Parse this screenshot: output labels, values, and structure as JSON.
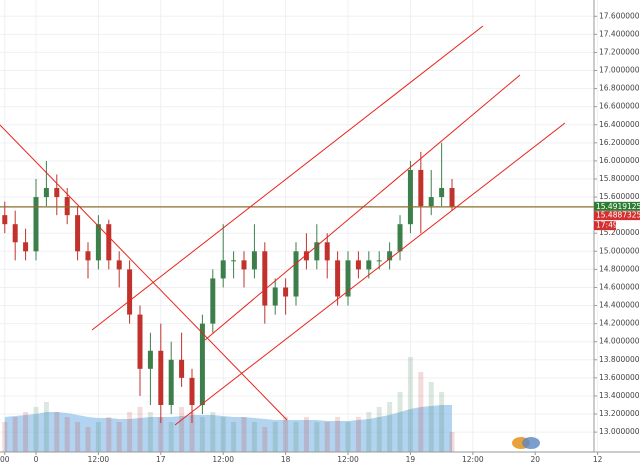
{
  "chart_data": {
    "type": "candlestick",
    "x": [
      -6,
      -4,
      -2,
      0,
      2,
      4,
      6,
      8,
      10,
      12,
      14,
      16,
      18,
      20,
      22,
      24,
      26,
      28,
      30,
      32,
      34,
      36,
      38,
      40,
      42,
      44,
      46,
      48,
      50,
      52,
      54,
      56,
      58,
      60,
      62,
      64,
      66,
      68,
      70,
      72,
      74,
      76,
      78,
      80
    ],
    "open": [
      15.4,
      15.3,
      15.1,
      15.0,
      15.6,
      15.7,
      15.6,
      15.4,
      15.0,
      14.9,
      15.3,
      14.9,
      14.8,
      14.3,
      13.7,
      13.9,
      13.3,
      13.8,
      13.6,
      13.3,
      14.2,
      14.7,
      14.9,
      14.9,
      14.8,
      15.0,
      14.4,
      14.6,
      14.5,
      15.0,
      14.9,
      15.1,
      14.9,
      14.5,
      14.9,
      14.8,
      14.9,
      14.9,
      15.0,
      15.3,
      15.9,
      15.5,
      15.6,
      15.7
    ],
    "high": [
      15.55,
      15.45,
      15.25,
      15.8,
      16.0,
      15.85,
      15.7,
      15.5,
      15.1,
      15.4,
      15.35,
      15.0,
      14.9,
      14.4,
      14.1,
      14.2,
      14.0,
      14.1,
      13.7,
      14.3,
      14.8,
      15.3,
      15.0,
      15.0,
      15.3,
      15.1,
      14.7,
      14.7,
      15.1,
      15.2,
      15.3,
      15.2,
      15.0,
      15.0,
      15.0,
      15.0,
      15.0,
      15.1,
      15.4,
      16.0,
      16.1,
      15.9,
      16.2,
      15.8
    ],
    "low": [
      15.2,
      14.9,
      14.9,
      14.9,
      15.5,
      15.4,
      15.3,
      14.9,
      14.7,
      14.8,
      14.8,
      14.6,
      14.2,
      13.4,
      13.3,
      13.1,
      13.2,
      13.5,
      13.1,
      13.2,
      14.1,
      14.6,
      14.7,
      14.6,
      14.7,
      14.2,
      14.3,
      14.3,
      14.4,
      14.8,
      14.8,
      14.7,
      14.4,
      14.4,
      14.7,
      14.7,
      14.8,
      14.8,
      14.9,
      15.2,
      15.2,
      15.4,
      15.5,
      15.45
    ],
    "close": [
      15.3,
      15.1,
      15.0,
      15.6,
      15.7,
      15.6,
      15.4,
      15.0,
      14.9,
      15.3,
      14.9,
      14.8,
      14.3,
      13.7,
      13.9,
      13.3,
      13.8,
      13.6,
      13.3,
      14.2,
      14.7,
      14.9,
      14.9,
      14.8,
      15.0,
      14.4,
      14.6,
      14.5,
      15.0,
      14.9,
      15.1,
      14.9,
      14.5,
      14.9,
      14.8,
      14.9,
      14.9,
      15.0,
      15.3,
      15.9,
      15.5,
      15.6,
      15.7,
      15.49
    ],
    "volume": [
      30,
      35,
      40,
      45,
      50,
      40,
      35,
      30,
      25,
      30,
      35,
      30,
      40,
      45,
      40,
      35,
      30,
      45,
      40,
      35,
      40,
      35,
      30,
      35,
      30,
      25,
      30,
      35,
      30,
      35,
      30,
      30,
      35,
      30,
      35,
      40,
      45,
      50,
      60,
      95,
      80,
      70,
      60,
      20
    ],
    "volume_ma": [
      35,
      36,
      37,
      38,
      40,
      40,
      39,
      37,
      35,
      34,
      34,
      33,
      33,
      34,
      35,
      35,
      35,
      36,
      37,
      37,
      37,
      36,
      35,
      35,
      34,
      33,
      32,
      32,
      32,
      32,
      32,
      31,
      31,
      31,
      32,
      33,
      35,
      37,
      40,
      43,
      45,
      46,
      47,
      47
    ],
    "vlim": [
      0,
      100
    ],
    "up_color": "#3d7f4b",
    "down_color": "#c2322c",
    "xlim": [
      -6.92,
      107.3
    ],
    "xticks": [
      {
        "value": -6,
        "label": "00"
      },
      0,
      {
        "value": 12,
        "label": "12:00"
      },
      {
        "value": 24,
        "label": "17"
      },
      {
        "value": 36,
        "label": "12:00"
      },
      {
        "value": 48,
        "label": "18"
      },
      {
        "value": 60,
        "label": "12:00"
      },
      {
        "value": 72,
        "label": "19"
      },
      {
        "value": 84,
        "label": "12:00"
      },
      {
        "value": 96,
        "label": "20"
      },
      {
        "value": 108,
        "label": "12"
      }
    ],
    "ylim": [
      12.78,
      17.78
    ],
    "yticks": [
      {
        "value": 13.0,
        "label": "13.00000000"
      },
      {
        "value": 13.2,
        "label": "13.20000000"
      },
      {
        "value": 13.4,
        "label": "13.40000000"
      },
      {
        "value": 13.6,
        "label": "13.60000000"
      },
      {
        "value": 13.8,
        "label": "13.80000000"
      },
      {
        "value": 14.0,
        "label": "14.00000000"
      },
      {
        "value": 14.2,
        "label": "14.20000000"
      },
      {
        "value": 14.4,
        "label": "14.40000000"
      },
      {
        "value": 14.6,
        "label": "14.60000000"
      },
      {
        "value": 14.8,
        "label": "14.80000000"
      },
      {
        "value": 15.0,
        "label": "15.00000000"
      },
      {
        "value": 15.2,
        "label": "15.20000000"
      },
      {
        "value": 15.6,
        "label": "15.60000000"
      },
      {
        "value": 15.8,
        "label": "15.80000000"
      },
      {
        "value": 16.0,
        "label": "16.00000000"
      },
      {
        "value": 16.2,
        "label": "16.20000000"
      },
      {
        "value": 16.4,
        "label": "16.40000000"
      },
      {
        "value": 16.6,
        "label": "16.60000000"
      },
      {
        "value": 16.8,
        "label": "16.80000000"
      },
      {
        "value": 17.0,
        "label": "17.00000000"
      },
      {
        "value": 17.2,
        "label": "17.20000000"
      },
      {
        "value": 17.4,
        "label": "17.40000000"
      },
      {
        "value": 17.6,
        "label": "17.60000000"
      }
    ],
    "grid": true,
    "last_price": 15.49191258,
    "prev_price": 15.48873254,
    "time_label": "17:49"
  }
}
